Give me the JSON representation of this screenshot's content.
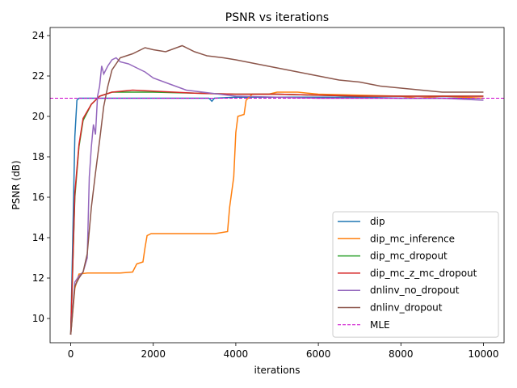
{
  "chart_data": {
    "type": "line",
    "title": "PSNR vs iterations",
    "xlabel": "iterations",
    "ylabel": "PSNR (dB)",
    "xlim": [
      -500,
      10500
    ],
    "ylim": [
      8.8,
      24.4
    ],
    "xticks": [
      0,
      2000,
      4000,
      6000,
      8000,
      10000
    ],
    "yticks": [
      10,
      12,
      14,
      16,
      18,
      20,
      22,
      24
    ],
    "grid": false,
    "legend_position": "bottom-right",
    "hline": {
      "name": "MLE",
      "y": 20.9,
      "color": "#cc00cc",
      "style": "dashed"
    },
    "series": [
      {
        "name": "dip",
        "color": "#1f77b4",
        "points": [
          [
            0,
            9.2
          ],
          [
            50,
            14
          ],
          [
            100,
            19
          ],
          [
            150,
            20.8
          ],
          [
            200,
            20.9
          ],
          [
            500,
            20.9
          ],
          [
            1000,
            20.9
          ],
          [
            2000,
            20.9
          ],
          [
            3000,
            20.9
          ],
          [
            3350,
            20.9
          ],
          [
            3420,
            20.75
          ],
          [
            3480,
            20.9
          ],
          [
            4000,
            20.95
          ],
          [
            5000,
            20.95
          ],
          [
            6000,
            20.95
          ],
          [
            7000,
            20.95
          ],
          [
            8000,
            20.9
          ],
          [
            9000,
            20.9
          ],
          [
            10000,
            20.9
          ]
        ]
      },
      {
        "name": "dip_mc_inference",
        "color": "#ff7f0e",
        "points": [
          [
            0,
            9.2
          ],
          [
            100,
            11.5
          ],
          [
            200,
            12.2
          ],
          [
            400,
            12.25
          ],
          [
            800,
            12.25
          ],
          [
            1200,
            12.25
          ],
          [
            1500,
            12.3
          ],
          [
            1600,
            12.7
          ],
          [
            1750,
            12.8
          ],
          [
            1800,
            13.5
          ],
          [
            1850,
            14.1
          ],
          [
            1950,
            14.2
          ],
          [
            2500,
            14.2
          ],
          [
            3000,
            14.2
          ],
          [
            3500,
            14.2
          ],
          [
            3800,
            14.3
          ],
          [
            3850,
            15.5
          ],
          [
            3950,
            17
          ],
          [
            4000,
            19.2
          ],
          [
            4050,
            20
          ],
          [
            4200,
            20.1
          ],
          [
            4250,
            20.8
          ],
          [
            4400,
            21.1
          ],
          [
            4800,
            21.1
          ],
          [
            5000,
            21.2
          ],
          [
            5500,
            21.2
          ],
          [
            6000,
            21.1
          ],
          [
            7000,
            21.05
          ],
          [
            8000,
            21.0
          ],
          [
            8400,
            20.9
          ],
          [
            9000,
            21.0
          ],
          [
            10000,
            20.9
          ]
        ]
      },
      {
        "name": "dip_mc_dropout",
        "color": "#2ca02c",
        "points": [
          [
            0,
            9.2
          ],
          [
            100,
            16
          ],
          [
            200,
            18.5
          ],
          [
            300,
            19.8
          ],
          [
            500,
            20.6
          ],
          [
            700,
            21.0
          ],
          [
            1000,
            21.2
          ],
          [
            2000,
            21.2
          ],
          [
            3000,
            21.15
          ],
          [
            4000,
            21.1
          ],
          [
            5000,
            21.1
          ],
          [
            6000,
            21.05
          ],
          [
            7000,
            21.0
          ],
          [
            8000,
            21.0
          ],
          [
            9000,
            21.0
          ],
          [
            10000,
            21.0
          ]
        ]
      },
      {
        "name": "dip_mc_z_mc_dropout",
        "color": "#d62728",
        "points": [
          [
            0,
            9.2
          ],
          [
            100,
            16.2
          ],
          [
            200,
            18.6
          ],
          [
            300,
            19.9
          ],
          [
            500,
            20.6
          ],
          [
            700,
            21.0
          ],
          [
            1000,
            21.2
          ],
          [
            1500,
            21.3
          ],
          [
            2000,
            21.25
          ],
          [
            3000,
            21.15
          ],
          [
            4000,
            21.1
          ],
          [
            5000,
            21.1
          ],
          [
            6000,
            21.05
          ],
          [
            7000,
            21.0
          ],
          [
            8000,
            21.0
          ],
          [
            9000,
            21.0
          ],
          [
            10000,
            21.0
          ]
        ]
      },
      {
        "name": "dnlinv_no_dropout",
        "color": "#9467bd",
        "points": [
          [
            0,
            9.2
          ],
          [
            100,
            11.8
          ],
          [
            200,
            12.1
          ],
          [
            300,
            12.3
          ],
          [
            400,
            13
          ],
          [
            450,
            17
          ],
          [
            500,
            18.5
          ],
          [
            550,
            19.6
          ],
          [
            600,
            19.1
          ],
          [
            650,
            21
          ],
          [
            700,
            21.5
          ],
          [
            750,
            22.5
          ],
          [
            800,
            22.1
          ],
          [
            900,
            22.5
          ],
          [
            1000,
            22.8
          ],
          [
            1100,
            22.9
          ],
          [
            1200,
            22.7
          ],
          [
            1400,
            22.6
          ],
          [
            1600,
            22.4
          ],
          [
            1800,
            22.2
          ],
          [
            2000,
            21.9
          ],
          [
            2400,
            21.6
          ],
          [
            2800,
            21.3
          ],
          [
            3200,
            21.2
          ],
          [
            3600,
            21.1
          ],
          [
            4000,
            21.0
          ],
          [
            5000,
            20.95
          ],
          [
            6000,
            20.9
          ],
          [
            7000,
            20.9
          ],
          [
            8000,
            20.9
          ],
          [
            9000,
            20.9
          ],
          [
            10000,
            20.8
          ]
        ]
      },
      {
        "name": "dnlinv_dropout",
        "color": "#8c564b",
        "points": [
          [
            0,
            9.2
          ],
          [
            100,
            11.6
          ],
          [
            200,
            12.0
          ],
          [
            300,
            12.3
          ],
          [
            400,
            13.2
          ],
          [
            500,
            15.5
          ],
          [
            600,
            17.2
          ],
          [
            700,
            18.8
          ],
          [
            800,
            20.5
          ],
          [
            900,
            21.5
          ],
          [
            1000,
            22.3
          ],
          [
            1200,
            22.9
          ],
          [
            1500,
            23.1
          ],
          [
            1800,
            23.4
          ],
          [
            2000,
            23.3
          ],
          [
            2300,
            23.2
          ],
          [
            2700,
            23.5
          ],
          [
            3000,
            23.2
          ],
          [
            3300,
            23.0
          ],
          [
            3700,
            22.9
          ],
          [
            4000,
            22.8
          ],
          [
            4500,
            22.6
          ],
          [
            5000,
            22.4
          ],
          [
            5500,
            22.2
          ],
          [
            6000,
            22.0
          ],
          [
            6500,
            21.8
          ],
          [
            7000,
            21.7
          ],
          [
            7500,
            21.5
          ],
          [
            8000,
            21.4
          ],
          [
            8500,
            21.3
          ],
          [
            9000,
            21.2
          ],
          [
            9500,
            21.2
          ],
          [
            10000,
            21.2
          ]
        ]
      }
    ]
  }
}
